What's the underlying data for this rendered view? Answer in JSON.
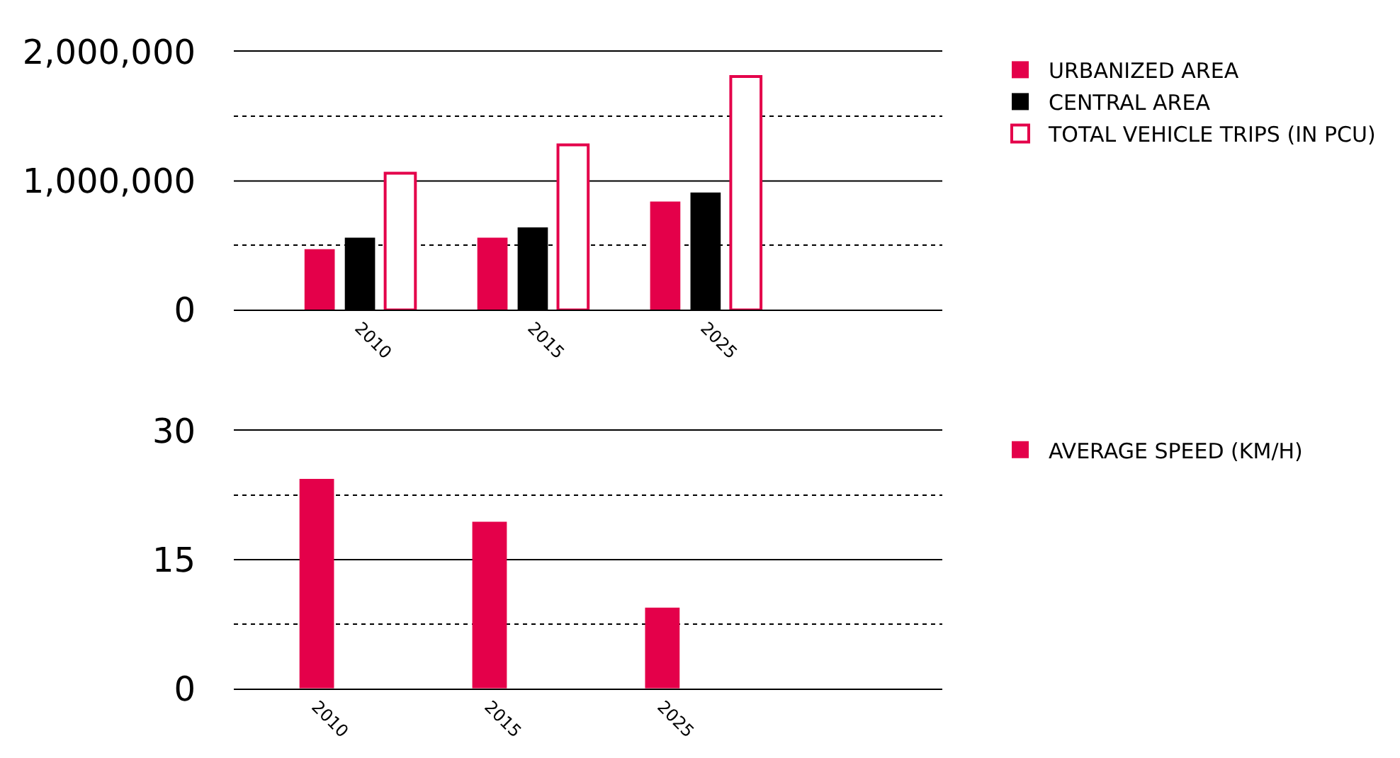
{
  "chart_data": [
    {
      "type": "bar",
      "categories": [
        "2010",
        "2015",
        "2025"
      ],
      "series": [
        {
          "name": "URBANIZED AREA",
          "color": "#e4004a",
          "values": [
            470000,
            560000,
            840000
          ]
        },
        {
          "name": "CENTRAL AREA",
          "color": "#000000",
          "values": [
            560000,
            640000,
            910000
          ]
        },
        {
          "name": "TOTAL VEHICLE TRIPS (IN PCU)",
          "color": "#e4004a",
          "line_style": "solid",
          "values": [
            1060000,
            1280000,
            1810000
          ]
        }
      ],
      "ylim": [
        0,
        2000000
      ],
      "yticks": [
        0,
        {
          "value": 500000,
          "label": null
        },
        {
          "value": 1000000,
          "label": "1,000,000"
        },
        {
          "value": 1500000,
          "label": null
        },
        {
          "value": 2000000,
          "label": "2,000,000"
        }
      ],
      "ref_lines": [
        {
          "axis": "y",
          "value": 1000000,
          "color": "#000000",
          "line_style": "solid"
        }
      ],
      "grid": "y",
      "legend": "right"
    },
    {
      "type": "bar",
      "categories": [
        "2010",
        "2015",
        "2025"
      ],
      "series": [
        {
          "name": "AVERAGE SPEED (KM/H)",
          "color": "#e4004a",
          "values": [
            24.4,
            19.4,
            9.4
          ]
        }
      ],
      "ylim": [
        0,
        30
      ],
      "yticks": [
        0,
        {
          "value": 7.5,
          "label": null
        },
        15,
        {
          "value": 22.5,
          "label": null
        },
        30
      ],
      "ref_lines": [
        {
          "axis": "y",
          "value": 15,
          "color": "#000000",
          "line_style": "solid"
        }
      ],
      "grid": "y",
      "legend": "right"
    }
  ]
}
